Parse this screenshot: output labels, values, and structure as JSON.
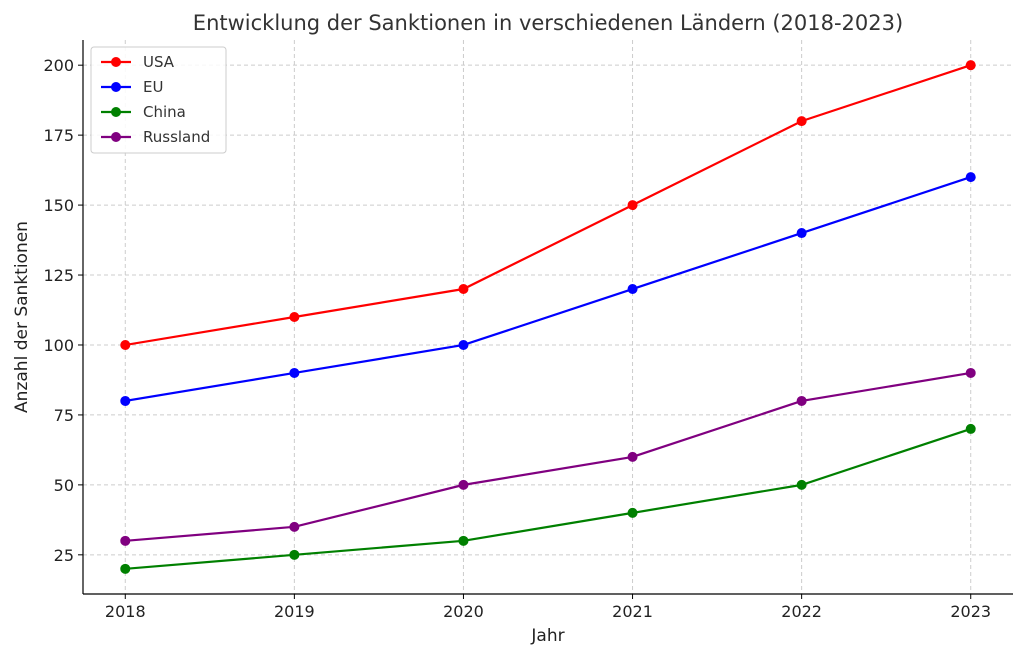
{
  "chart_data": {
    "type": "line",
    "title": "Entwicklung der Sanktionen in verschiedenen Ländern (2018-2023)",
    "xlabel": "Jahr",
    "ylabel": "Anzahl der Sanktionen",
    "x": [
      2018,
      2019,
      2020,
      2021,
      2022,
      2023
    ],
    "x_tick_labels": [
      "2018",
      "2019",
      "2020",
      "2021",
      "2022",
      "2023"
    ],
    "xlim": [
      2017.75,
      2023.25
    ],
    "ylim": [
      11,
      209
    ],
    "y_ticks": [
      25,
      50,
      75,
      100,
      125,
      150,
      175,
      200
    ],
    "y_tick_labels": [
      "25",
      "50",
      "75",
      "100",
      "125",
      "150",
      "175",
      "200"
    ],
    "grid": true,
    "legend_position": "top-left",
    "series": [
      {
        "name": "USA",
        "color": "#ff0000",
        "values": [
          100,
          110,
          120,
          150,
          180,
          200
        ]
      },
      {
        "name": "EU",
        "color": "#0000ff",
        "values": [
          80,
          90,
          100,
          120,
          140,
          160
        ]
      },
      {
        "name": "China",
        "color": "#008000",
        "values": [
          20,
          25,
          30,
          40,
          50,
          70
        ]
      },
      {
        "name": "Russland",
        "color": "#800080",
        "values": [
          30,
          35,
          50,
          60,
          80,
          90
        ]
      }
    ]
  }
}
